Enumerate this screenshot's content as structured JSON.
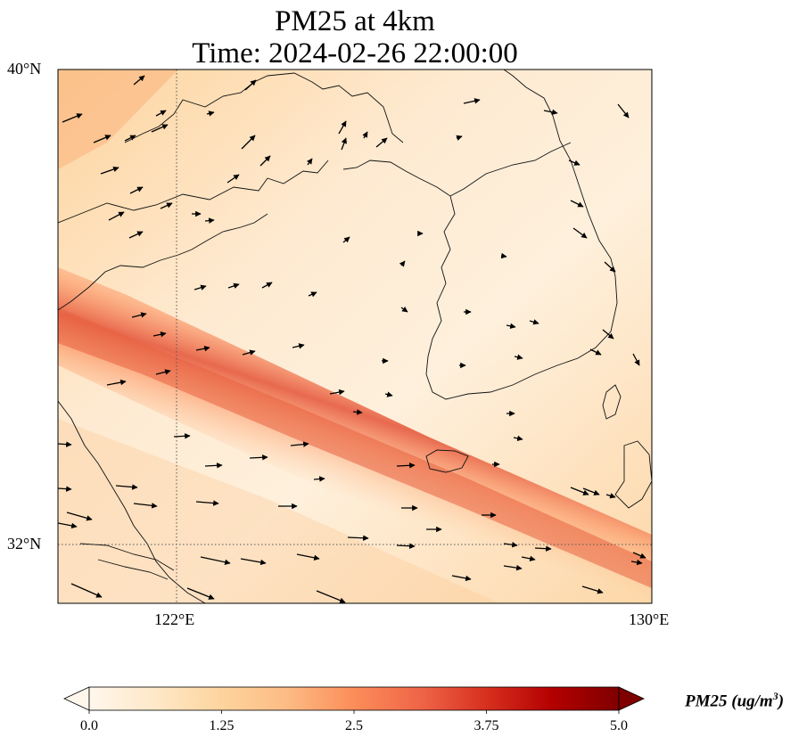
{
  "title_line1": "PM25 at 4km",
  "title_line2": "Time: 2024-02-26 22:00:00",
  "axes": {
    "lat_ticks": [
      {
        "value": 40,
        "label": "40°N"
      },
      {
        "value": 32,
        "label": "32°N"
      }
    ],
    "lon_ticks": [
      {
        "value": 122,
        "label": "122°E"
      },
      {
        "value": 130,
        "label": "130°E"
      }
    ],
    "lon_range": [
      120,
      130
    ],
    "lat_range": [
      31,
      40
    ],
    "gridlines": "dotted"
  },
  "colorbar": {
    "label": "PM25 (ug/m",
    "label_sup": "3",
    "label_close": ")",
    "ticks": [
      "0.0",
      "1.25",
      "2.5",
      "3.75",
      "5.0"
    ],
    "min": 0.0,
    "max": 5.0,
    "colormap": "OrRd",
    "extend": "both",
    "colors": [
      "#fff7ec",
      "#fee8c8",
      "#fdd49e",
      "#fdbb84",
      "#fc8d59",
      "#ef6548",
      "#d7301f",
      "#b30000",
      "#7f0000"
    ]
  },
  "chart_data": {
    "type": "heatmap",
    "title": "PM25 at 4km",
    "subtitle": "Time: 2024-02-26 22:00:00",
    "xlabel": "",
    "ylabel": "",
    "xlim": [
      120,
      130
    ],
    "ylim": [
      31,
      40
    ],
    "colorbar_range": [
      0.0,
      5.0
    ],
    "plume": {
      "description_values": "concentration band along NW-SE diagonal",
      "peak_value": 2.8,
      "background_value": 0.6,
      "points": [
        [
          120.0,
          34.8
        ],
        [
          121.8,
          34.0
        ],
        [
          124.0,
          33.2
        ],
        [
          126.5,
          32.4
        ],
        [
          128.5,
          31.6
        ],
        [
          130.0,
          31.0
        ]
      ]
    },
    "wind_vectors": "arrows indicating wind direction"
  }
}
